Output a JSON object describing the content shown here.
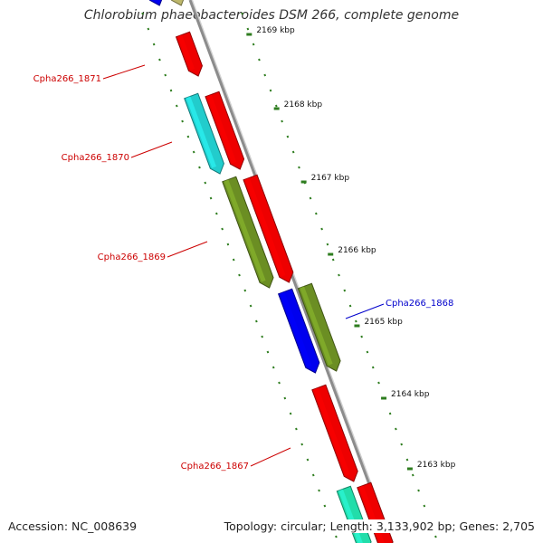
{
  "title": "Chlorobium phaeobacteroides DSM 266, complete genome",
  "footer": {
    "accession": "Accession: NC_008639",
    "summary": "Topology: circular; Length: 3,133,902 bp; Genes: 2,705"
  },
  "colors": {
    "backbone": "#8c8c8c",
    "tick_dash": "#2e7d1f",
    "label_red": "#cc0000",
    "label_blue": "#0000cc",
    "gene_red": "#ee0000",
    "gene_cyan": "#22cccc",
    "gene_olive": "#6b8e23",
    "gene_blue": "#0000ee",
    "gene_aqua": "#22ddaa",
    "gene_khaki": "#bdb76b"
  },
  "ruler": [
    {
      "label": "2169 kbp"
    },
    {
      "label": "2168 kbp"
    },
    {
      "label": "2167 kbp"
    },
    {
      "label": "2166 kbp"
    },
    {
      "label": "2165 kbp"
    },
    {
      "label": "2164 kbp"
    },
    {
      "label": "2163 kbp"
    }
  ],
  "gene_labels": [
    {
      "name": "Cpha266_1871",
      "color": "red"
    },
    {
      "name": "Cpha266_1870",
      "color": "red"
    },
    {
      "name": "Cpha266_1869",
      "color": "red"
    },
    {
      "name": "Cpha266_1868",
      "color": "blue"
    },
    {
      "name": "Cpha266_1867",
      "color": "red"
    }
  ]
}
